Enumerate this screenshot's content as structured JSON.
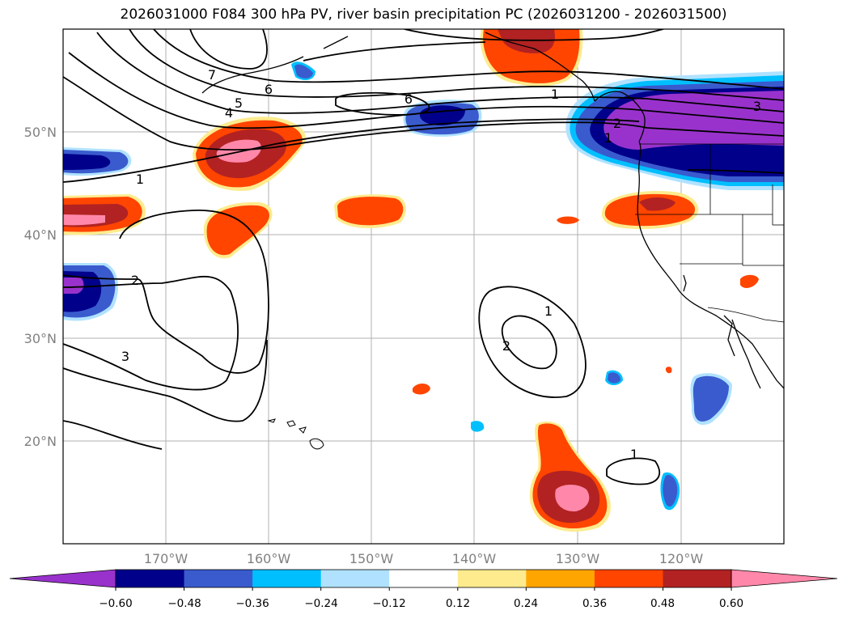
{
  "title": "2026031000 F084 300 hPa PV, river basin precipitation PC (2026031200 - 2026031500)",
  "map": {
    "lat_labels": [
      "50°N",
      "40°N",
      "30°N",
      "20°N"
    ],
    "lon_labels": [
      "170°W",
      "160°W",
      "150°W",
      "140°W",
      "130°W",
      "120°W"
    ],
    "contour_labels": [
      "7",
      "6",
      "5",
      "4",
      "6",
      "1",
      "2",
      "3",
      "1",
      "2",
      "1",
      "3",
      "2",
      "1",
      "1"
    ]
  },
  "colorbar": {
    "tick_labels": [
      "−0.60",
      "−0.48",
      "−0.36",
      "−0.24",
      "−0.12",
      "0.12",
      "0.24",
      "0.36",
      "0.48",
      "0.60"
    ],
    "colors": [
      "#9932cc",
      "#00008b",
      "#3a5bcd",
      "#00bfff",
      "#b0e2ff",
      "#ffffff",
      "#fdeb8e",
      "#ffa500",
      "#ff4500",
      "#b22222",
      "#ff88aa"
    ]
  },
  "colors": {
    "neg_strong": "#9932cc",
    "neg_1": "#00008b",
    "neg_2": "#3a5bcd",
    "neg_3": "#00bfff",
    "neg_4": "#b0e2ff",
    "pos_1": "#fdeb8e",
    "pos_2": "#ffa500",
    "pos_3": "#ff4500",
    "pos_4": "#b22222",
    "pos_strong": "#ff88aa",
    "grid": "#b0b0b0",
    "axis_label": "#808080"
  }
}
